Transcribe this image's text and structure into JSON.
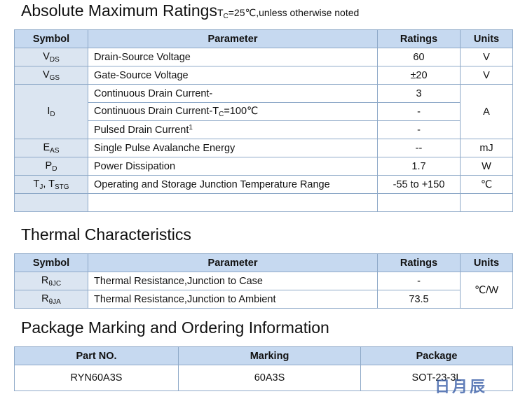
{
  "absolute_maximum_ratings": {
    "title": "Absolute Maximum Ratings",
    "condition": {
      "main": "T",
      "sub": "C",
      "rest": "=25℃,unless otherwise noted"
    },
    "header": [
      "Symbol",
      "Parameter",
      "Ratings",
      "Units"
    ],
    "rows": [
      {
        "symbol": {
          "main": "V",
          "sub": "DS"
        },
        "parameter": "Drain-Source Voltage",
        "rating": "60",
        "unit": "V"
      },
      {
        "symbol": {
          "main": "V",
          "sub": "GS"
        },
        "parameter": "Gate-Source Voltage",
        "rating": "±20",
        "unit": "V"
      },
      {
        "symbol": {
          "main": "I",
          "sub": "D"
        },
        "parameter": "Continuous Drain Current-",
        "rating": "3",
        "unit": "A"
      },
      {
        "parameter": {
          "main": "Continuous Drain Current-T",
          "sub": "C",
          "rest": "=100℃"
        },
        "rating": "-"
      },
      {
        "parameter": {
          "main": "Pulsed Drain Current",
          "sup": "1"
        },
        "rating": "-"
      },
      {
        "symbol": {
          "main": "E",
          "sub": "AS"
        },
        "parameter": "Single Pulse Avalanche Energy",
        "rating": "--",
        "unit": "mJ"
      },
      {
        "symbol": {
          "main": "P",
          "sub": "D"
        },
        "parameter": "Power Dissipation",
        "rating": "1.7",
        "unit": "W"
      },
      {
        "symbol": {
          "main": "T",
          "sub": "J",
          "main2": ", T",
          "sub2": "STG"
        },
        "parameter": "Operating and Storage Junction Temperature Range",
        "rating": "-55 to +150",
        "unit": "℃"
      }
    ]
  },
  "thermal_characteristics": {
    "title": "Thermal Characteristics",
    "header": [
      "Symbol",
      "Parameter",
      "Ratings",
      "Units"
    ],
    "rows": [
      {
        "symbol": {
          "main": "R",
          "sub": "θJC"
        },
        "parameter": "Thermal Resistance,Junction to Case",
        "rating": "-",
        "unit": "℃/W"
      },
      {
        "symbol": {
          "main": "R",
          "sub": "θJA"
        },
        "parameter": "Thermal Resistance,Junction to Ambient",
        "rating": "73.5"
      }
    ]
  },
  "package_marking": {
    "title": "Package Marking and Ordering Information",
    "header": [
      "Part NO.",
      "Marking",
      "Package"
    ],
    "rows": [
      [
        "RYN60A3S",
        "60A3S",
        "SOT-23-3L"
      ]
    ]
  },
  "watermark": "日月辰"
}
